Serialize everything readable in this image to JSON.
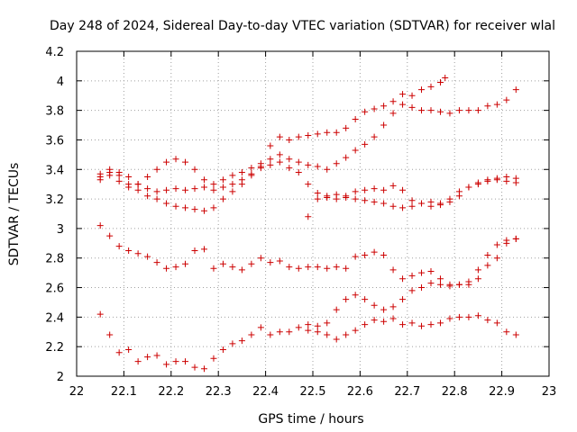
{
  "chart_data": {
    "type": "scatter",
    "title": "Day 248 of 2024, Sidereal Day-to-day VTEC variation (SDTVAR) for receiver wlal",
    "xlabel": "GPS time / hours",
    "ylabel": "SDTVAR / TECUs",
    "xlim": [
      22,
      23
    ],
    "ylim": [
      2,
      4.2
    ],
    "xticks": [
      "22",
      "22.1",
      "22.2",
      "22.3",
      "22.4",
      "22.5",
      "22.6",
      "22.7",
      "22.8",
      "22.9",
      "23"
    ],
    "yticks": [
      "2",
      "2.2",
      "2.4",
      "2.6",
      "2.8",
      "3",
      "3.2",
      "3.4",
      "3.6",
      "3.8",
      "4",
      "4.2"
    ],
    "grid": true,
    "marker": "+",
    "color": "#cc0000",
    "series": [
      {
        "x": [
          22.05,
          22.07,
          22.09,
          22.11,
          22.13,
          22.15,
          22.17,
          22.19,
          22.21,
          22.23,
          22.25,
          22.27,
          22.29,
          22.31,
          22.33,
          22.35,
          22.37,
          22.39,
          22.41,
          22.43,
          22.45,
          22.47,
          22.49,
          22.51,
          22.53,
          22.55,
          22.57,
          22.59,
          22.61,
          22.63,
          22.65,
          22.67,
          22.69,
          22.71,
          22.73,
          22.75,
          22.77,
          22.78
        ],
        "y": [
          3.35,
          3.38,
          3.36,
          3.3,
          3.26,
          3.22,
          3.2,
          3.17,
          3.15,
          3.14,
          3.13,
          3.12,
          3.14,
          3.2,
          3.25,
          3.3,
          3.36,
          3.42,
          3.47,
          3.5,
          3.47,
          3.45,
          3.43,
          3.42,
          3.4,
          3.44,
          3.48,
          3.53,
          3.57,
          3.62,
          3.7,
          3.78,
          3.84,
          3.9,
          3.94,
          3.96,
          3.99,
          4.02
        ]
      },
      {
        "x": [
          22.05,
          22.07,
          22.09,
          22.11,
          22.13,
          22.15,
          22.17,
          22.19,
          22.21,
          22.23,
          22.25,
          22.27,
          22.29,
          22.31,
          22.33,
          22.35,
          22.37,
          22.39,
          22.41,
          22.43,
          22.45,
          22.47,
          22.49,
          22.51,
          22.53,
          22.55,
          22.57,
          22.59,
          22.61,
          22.63,
          22.65,
          22.67,
          22.69,
          22.71,
          22.73,
          22.75,
          22.77,
          22.79,
          22.81,
          22.83,
          22.85,
          22.87,
          22.89,
          22.91,
          22.93
        ],
        "y": [
          3.33,
          3.36,
          3.32,
          3.28,
          3.3,
          3.35,
          3.4,
          3.45,
          3.47,
          3.45,
          3.4,
          3.33,
          3.3,
          3.33,
          3.36,
          3.38,
          3.41,
          3.44,
          3.56,
          3.62,
          3.6,
          3.62,
          3.63,
          3.64,
          3.65,
          3.65,
          3.68,
          3.74,
          3.79,
          3.81,
          3.83,
          3.86,
          3.91,
          3.82,
          3.8,
          3.8,
          3.79,
          3.78,
          3.8,
          3.8,
          3.8,
          3.83,
          3.84,
          3.87,
          3.94
        ]
      },
      {
        "x": [
          22.05,
          22.07,
          22.09,
          22.11,
          22.13,
          22.15,
          22.17,
          22.19,
          22.21,
          22.23,
          22.25,
          22.27,
          22.29,
          22.31,
          22.33,
          22.35,
          22.37,
          22.39,
          22.41,
          22.43,
          22.45,
          22.47,
          22.49,
          22.51,
          22.53,
          22.55,
          22.57,
          22.59,
          22.61,
          22.63,
          22.65,
          22.67,
          22.69,
          22.71,
          22.73,
          22.75,
          22.77,
          22.79,
          22.81,
          22.83,
          22.85,
          22.87,
          22.89,
          22.91,
          22.93
        ],
        "y": [
          3.37,
          3.4,
          3.38,
          3.35,
          3.3,
          3.27,
          3.25,
          3.26,
          3.27,
          3.26,
          3.27,
          3.28,
          3.26,
          3.28,
          3.3,
          3.33,
          3.37,
          3.41,
          3.43,
          3.45,
          3.41,
          3.38,
          3.3,
          3.24,
          3.21,
          3.2,
          3.22,
          3.25,
          3.26,
          3.27,
          3.26,
          3.29,
          3.26,
          3.19,
          3.17,
          3.18,
          3.17,
          3.2,
          3.25,
          3.28,
          3.31,
          3.33,
          3.34,
          3.35,
          3.34
        ]
      },
      {
        "x": [
          22.05,
          22.07,
          22.09,
          22.11,
          22.13,
          22.15,
          22.17,
          22.19,
          22.21,
          22.23,
          22.25,
          22.27,
          22.29,
          22.31,
          22.33,
          22.35,
          22.37,
          22.39,
          22.41,
          22.43,
          22.45,
          22.47,
          22.49,
          22.51,
          22.53,
          22.55,
          22.57,
          22.59,
          22.61,
          22.63,
          22.65,
          22.67,
          22.69,
          22.71,
          22.73,
          22.75,
          22.77,
          22.79,
          22.81,
          22.83,
          22.85,
          22.87,
          22.89,
          22.91,
          22.93
        ],
        "y": [
          3.02,
          2.95,
          2.88,
          2.85,
          2.83,
          2.81,
          2.77,
          2.73,
          2.74,
          2.76,
          2.85,
          2.86,
          2.73,
          2.76,
          2.74,
          2.72,
          2.76,
          2.8,
          2.77,
          2.78,
          2.74,
          2.73,
          2.74,
          2.74,
          2.73,
          2.74,
          2.73,
          2.81,
          2.82,
          2.84,
          2.82,
          2.72,
          2.66,
          2.68,
          2.7,
          2.71,
          2.66,
          2.62,
          2.62,
          2.64,
          2.72,
          2.82,
          2.89,
          2.92,
          2.93
        ]
      },
      {
        "x": [
          22.05,
          22.07,
          22.09,
          22.11,
          22.13,
          22.15,
          22.17,
          22.19,
          22.21,
          22.23,
          22.25,
          22.27,
          22.29,
          22.31,
          22.33,
          22.35,
          22.37,
          22.39,
          22.41,
          22.43,
          22.45,
          22.47,
          22.49,
          22.51,
          22.53,
          22.55,
          22.57,
          22.59,
          22.61,
          22.63,
          22.65,
          22.67,
          22.69,
          22.71,
          22.73,
          22.75,
          22.77,
          22.79,
          22.81,
          22.83,
          22.85,
          22.87,
          22.89,
          22.91,
          22.93
        ],
        "y": [
          2.42,
          2.28,
          2.16,
          2.18,
          2.1,
          2.13,
          2.14,
          2.08,
          2.1,
          2.1,
          2.06,
          2.05,
          2.12,
          2.18,
          2.22,
          2.24,
          2.28,
          2.33,
          2.28,
          2.3,
          2.3,
          2.33,
          2.35,
          2.34,
          2.36,
          2.45,
          2.52,
          2.55,
          2.52,
          2.48,
          2.45,
          2.47,
          2.52,
          2.58,
          2.6,
          2.63,
          2.62,
          2.61,
          2.62,
          2.62,
          2.66,
          2.75,
          2.8,
          2.9,
          2.93
        ]
      },
      {
        "x": [
          22.49,
          22.51,
          22.53,
          22.55,
          22.57,
          22.59,
          22.61,
          22.63,
          22.65,
          22.67,
          22.69,
          22.71,
          22.73,
          22.75,
          22.77,
          22.79,
          22.81,
          22.83,
          22.85,
          22.87,
          22.89,
          22.91,
          22.93
        ],
        "y": [
          3.08,
          3.2,
          3.22,
          3.23,
          3.21,
          3.2,
          3.19,
          3.18,
          3.17,
          3.15,
          3.14,
          3.15,
          3.17,
          3.15,
          3.16,
          3.18,
          3.22,
          3.28,
          3.3,
          3.32,
          3.33,
          3.32,
          3.31
        ]
      },
      {
        "x": [
          22.49,
          22.51,
          22.53,
          22.55,
          22.57,
          22.59,
          22.61,
          22.63,
          22.65,
          22.67,
          22.69,
          22.71,
          22.73,
          22.75,
          22.77,
          22.79,
          22.81,
          22.83,
          22.85,
          22.87,
          22.89,
          22.91,
          22.93
        ],
        "y": [
          2.31,
          2.3,
          2.28,
          2.25,
          2.28,
          2.31,
          2.35,
          2.38,
          2.37,
          2.39,
          2.35,
          2.36,
          2.34,
          2.35,
          2.36,
          2.39,
          2.4,
          2.4,
          2.41,
          2.38,
          2.36,
          2.3,
          2.28
        ]
      }
    ]
  }
}
